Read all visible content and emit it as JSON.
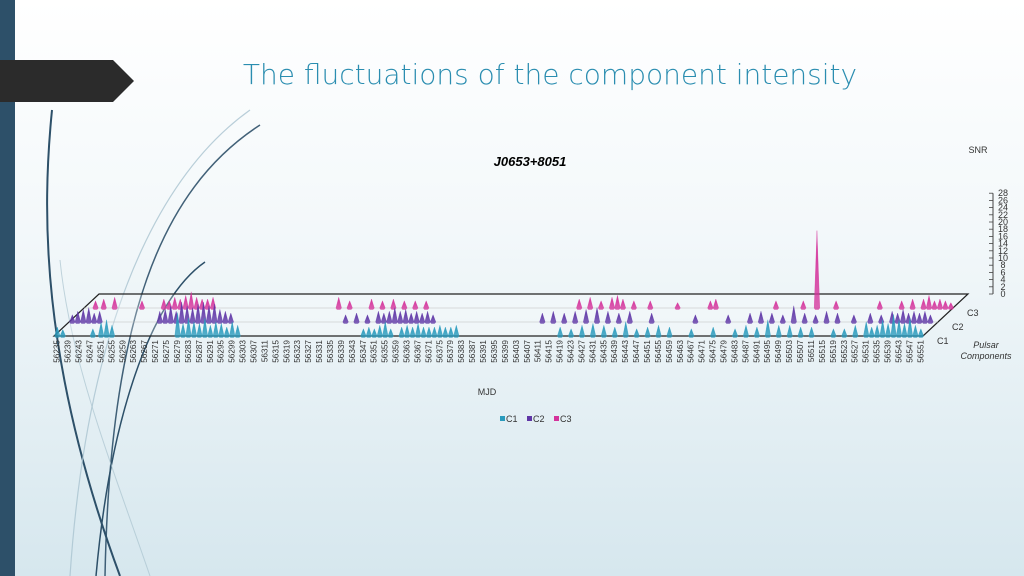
{
  "slide": {
    "title": "The fluctuations of the component intensity"
  },
  "colors": {
    "C1": "#2a9bbd",
    "C2": "#5e35a6",
    "C3": "#d4329b",
    "accent_bar": "#2d5069",
    "title_tab": "#2b2b2b"
  },
  "chart_data": {
    "type": "area",
    "subtype": "3d-area",
    "title": "J0653+8051",
    "xlabel": "MJD",
    "zlabel": "SNR",
    "depth_label": "Pulsar Components",
    "x_start": 56235,
    "x_step": 4,
    "x_end": 56551,
    "zlim": [
      0,
      28
    ],
    "z_ticks": [
      0,
      2,
      4,
      6,
      8,
      10,
      12,
      14,
      16,
      18,
      20,
      22,
      24,
      26,
      28
    ],
    "depth_categories": [
      "C1",
      "C2",
      "C3"
    ],
    "legend": {
      "entries": [
        "C1",
        "C2",
        "C3"
      ],
      "position": "bottom"
    },
    "series": [
      {
        "name": "C1",
        "points": [
          [
            56235,
            2.5
          ],
          [
            56237,
            1.8
          ],
          [
            56248,
            2.0
          ],
          [
            56251,
            3.8
          ],
          [
            56253,
            4.5
          ],
          [
            56255,
            3.0
          ],
          [
            56279,
            6.5
          ],
          [
            56281,
            3.5
          ],
          [
            56283,
            5.0
          ],
          [
            56285,
            4.0
          ],
          [
            56287,
            3.5
          ],
          [
            56289,
            5.0
          ],
          [
            56291,
            3.0
          ],
          [
            56293,
            4.0
          ],
          [
            56295,
            3.5
          ],
          [
            56297,
            2.5
          ],
          [
            56299,
            4.0
          ],
          [
            56301,
            3.0
          ],
          [
            56347,
            2.0
          ],
          [
            56349,
            2.5
          ],
          [
            56351,
            2.0
          ],
          [
            56353,
            3.0
          ],
          [
            56355,
            4.0
          ],
          [
            56357,
            2.0
          ],
          [
            56361,
            2.5
          ],
          [
            56363,
            3.0
          ],
          [
            56365,
            2.5
          ],
          [
            56367,
            3.5
          ],
          [
            56369,
            2.5
          ],
          [
            56371,
            2.5
          ],
          [
            56373,
            2.5
          ],
          [
            56375,
            3.0
          ],
          [
            56377,
            2.5
          ],
          [
            56379,
            2.5
          ],
          [
            56381,
            3.0
          ],
          [
            56419,
            2.5
          ],
          [
            56423,
            2.0
          ],
          [
            56427,
            3.0
          ],
          [
            56431,
            3.5
          ],
          [
            56435,
            3.0
          ],
          [
            56439,
            2.5
          ],
          [
            56443,
            4.0
          ],
          [
            56447,
            2.0
          ],
          [
            56451,
            2.5
          ],
          [
            56455,
            3.0
          ],
          [
            56459,
            2.5
          ],
          [
            56467,
            2.0
          ],
          [
            56475,
            2.5
          ],
          [
            56483,
            2.0
          ],
          [
            56487,
            3.0
          ],
          [
            56491,
            2.5
          ],
          [
            56495,
            4.5
          ],
          [
            56499,
            3.0
          ],
          [
            56503,
            3.0
          ],
          [
            56507,
            2.5
          ],
          [
            56511,
            2.5
          ],
          [
            56519,
            2.0
          ],
          [
            56523,
            2.0
          ],
          [
            56527,
            3.0
          ],
          [
            56531,
            4.0
          ],
          [
            56533,
            2.5
          ],
          [
            56535,
            3.0
          ],
          [
            56537,
            4.5
          ],
          [
            56539,
            3.5
          ],
          [
            56541,
            6.0
          ],
          [
            56543,
            4.5
          ],
          [
            56545,
            3.5
          ],
          [
            56547,
            5.0
          ],
          [
            56549,
            3.0
          ],
          [
            56551,
            2.0
          ]
        ]
      },
      {
        "name": "C2",
        "points": [
          [
            56235,
            2.0
          ],
          [
            56237,
            3.0
          ],
          [
            56239,
            3.5
          ],
          [
            56241,
            4.0
          ],
          [
            56243,
            2.5
          ],
          [
            56245,
            3.0
          ],
          [
            56267,
            3.0
          ],
          [
            56269,
            3.5
          ],
          [
            56271,
            4.5
          ],
          [
            56273,
            3.0
          ],
          [
            56275,
            5.5
          ],
          [
            56277,
            4.5
          ],
          [
            56279,
            4.0
          ],
          [
            56281,
            5.0
          ],
          [
            56283,
            5.5
          ],
          [
            56285,
            4.5
          ],
          [
            56287,
            5.0
          ],
          [
            56289,
            3.5
          ],
          [
            56291,
            3.0
          ],
          [
            56293,
            2.5
          ],
          [
            56335,
            2.0
          ],
          [
            56339,
            2.5
          ],
          [
            56343,
            2.0
          ],
          [
            56347,
            3.0
          ],
          [
            56349,
            2.5
          ],
          [
            56351,
            3.0
          ],
          [
            56353,
            4.0
          ],
          [
            56355,
            3.0
          ],
          [
            56357,
            3.5
          ],
          [
            56359,
            2.5
          ],
          [
            56361,
            3.0
          ],
          [
            56363,
            2.5
          ],
          [
            56365,
            3.0
          ],
          [
            56367,
            2.0
          ],
          [
            56407,
            2.5
          ],
          [
            56411,
            3.0
          ],
          [
            56415,
            2.5
          ],
          [
            56419,
            3.0
          ],
          [
            56423,
            3.5
          ],
          [
            56427,
            4.0
          ],
          [
            56431,
            3.0
          ],
          [
            56435,
            2.5
          ],
          [
            56439,
            3.0
          ],
          [
            56447,
            2.5
          ],
          [
            56463,
            2.0
          ],
          [
            56475,
            2.0
          ],
          [
            56483,
            2.5
          ],
          [
            56487,
            3.0
          ],
          [
            56491,
            2.5
          ],
          [
            56495,
            2.0
          ],
          [
            56499,
            4.5
          ],
          [
            56503,
            2.5
          ],
          [
            56507,
            2.0
          ],
          [
            56511,
            3.0
          ],
          [
            56515,
            2.5
          ],
          [
            56521,
            2.0
          ],
          [
            56527,
            2.5
          ],
          [
            56531,
            2.0
          ],
          [
            56535,
            3.0
          ],
          [
            56537,
            2.5
          ],
          [
            56539,
            3.5
          ],
          [
            56541,
            2.5
          ],
          [
            56543,
            3.0
          ],
          [
            56545,
            2.5
          ],
          [
            56547,
            3.0
          ],
          [
            56549,
            2.0
          ]
        ]
      },
      {
        "name": "C3",
        "points": [
          [
            56238,
            2.0
          ],
          [
            56241,
            2.5
          ],
          [
            56245,
            3.0
          ],
          [
            56255,
            2.0
          ],
          [
            56263,
            2.5
          ],
          [
            56265,
            2.0
          ],
          [
            56267,
            3.0
          ],
          [
            56269,
            2.5
          ],
          [
            56271,
            3.5
          ],
          [
            56273,
            4.5
          ],
          [
            56275,
            3.0
          ],
          [
            56277,
            2.5
          ],
          [
            56279,
            2.5
          ],
          [
            56281,
            3.0
          ],
          [
            56327,
            3.0
          ],
          [
            56331,
            2.0
          ],
          [
            56339,
            2.5
          ],
          [
            56343,
            2.0
          ],
          [
            56347,
            2.5
          ],
          [
            56351,
            2.0
          ],
          [
            56355,
            2.0
          ],
          [
            56359,
            2.0
          ],
          [
            56415,
            2.5
          ],
          [
            56419,
            3.0
          ],
          [
            56423,
            2.0
          ],
          [
            56427,
            3.0
          ],
          [
            56429,
            3.5
          ],
          [
            56431,
            2.5
          ],
          [
            56435,
            2.0
          ],
          [
            56441,
            2.0
          ],
          [
            56451,
            1.5
          ],
          [
            56463,
            2.0
          ],
          [
            56465,
            2.5
          ],
          [
            56487,
            2.0
          ],
          [
            56497,
            2.0
          ],
          [
            56502,
            21.5
          ],
          [
            56509,
            2.0
          ],
          [
            56525,
            2.0
          ],
          [
            56533,
            2.0
          ],
          [
            56537,
            2.5
          ],
          [
            56541,
            2.5
          ],
          [
            56543,
            3.5
          ],
          [
            56545,
            2.0
          ],
          [
            56547,
            2.5
          ],
          [
            56549,
            2.0
          ],
          [
            56551,
            1.5
          ]
        ]
      }
    ]
  }
}
